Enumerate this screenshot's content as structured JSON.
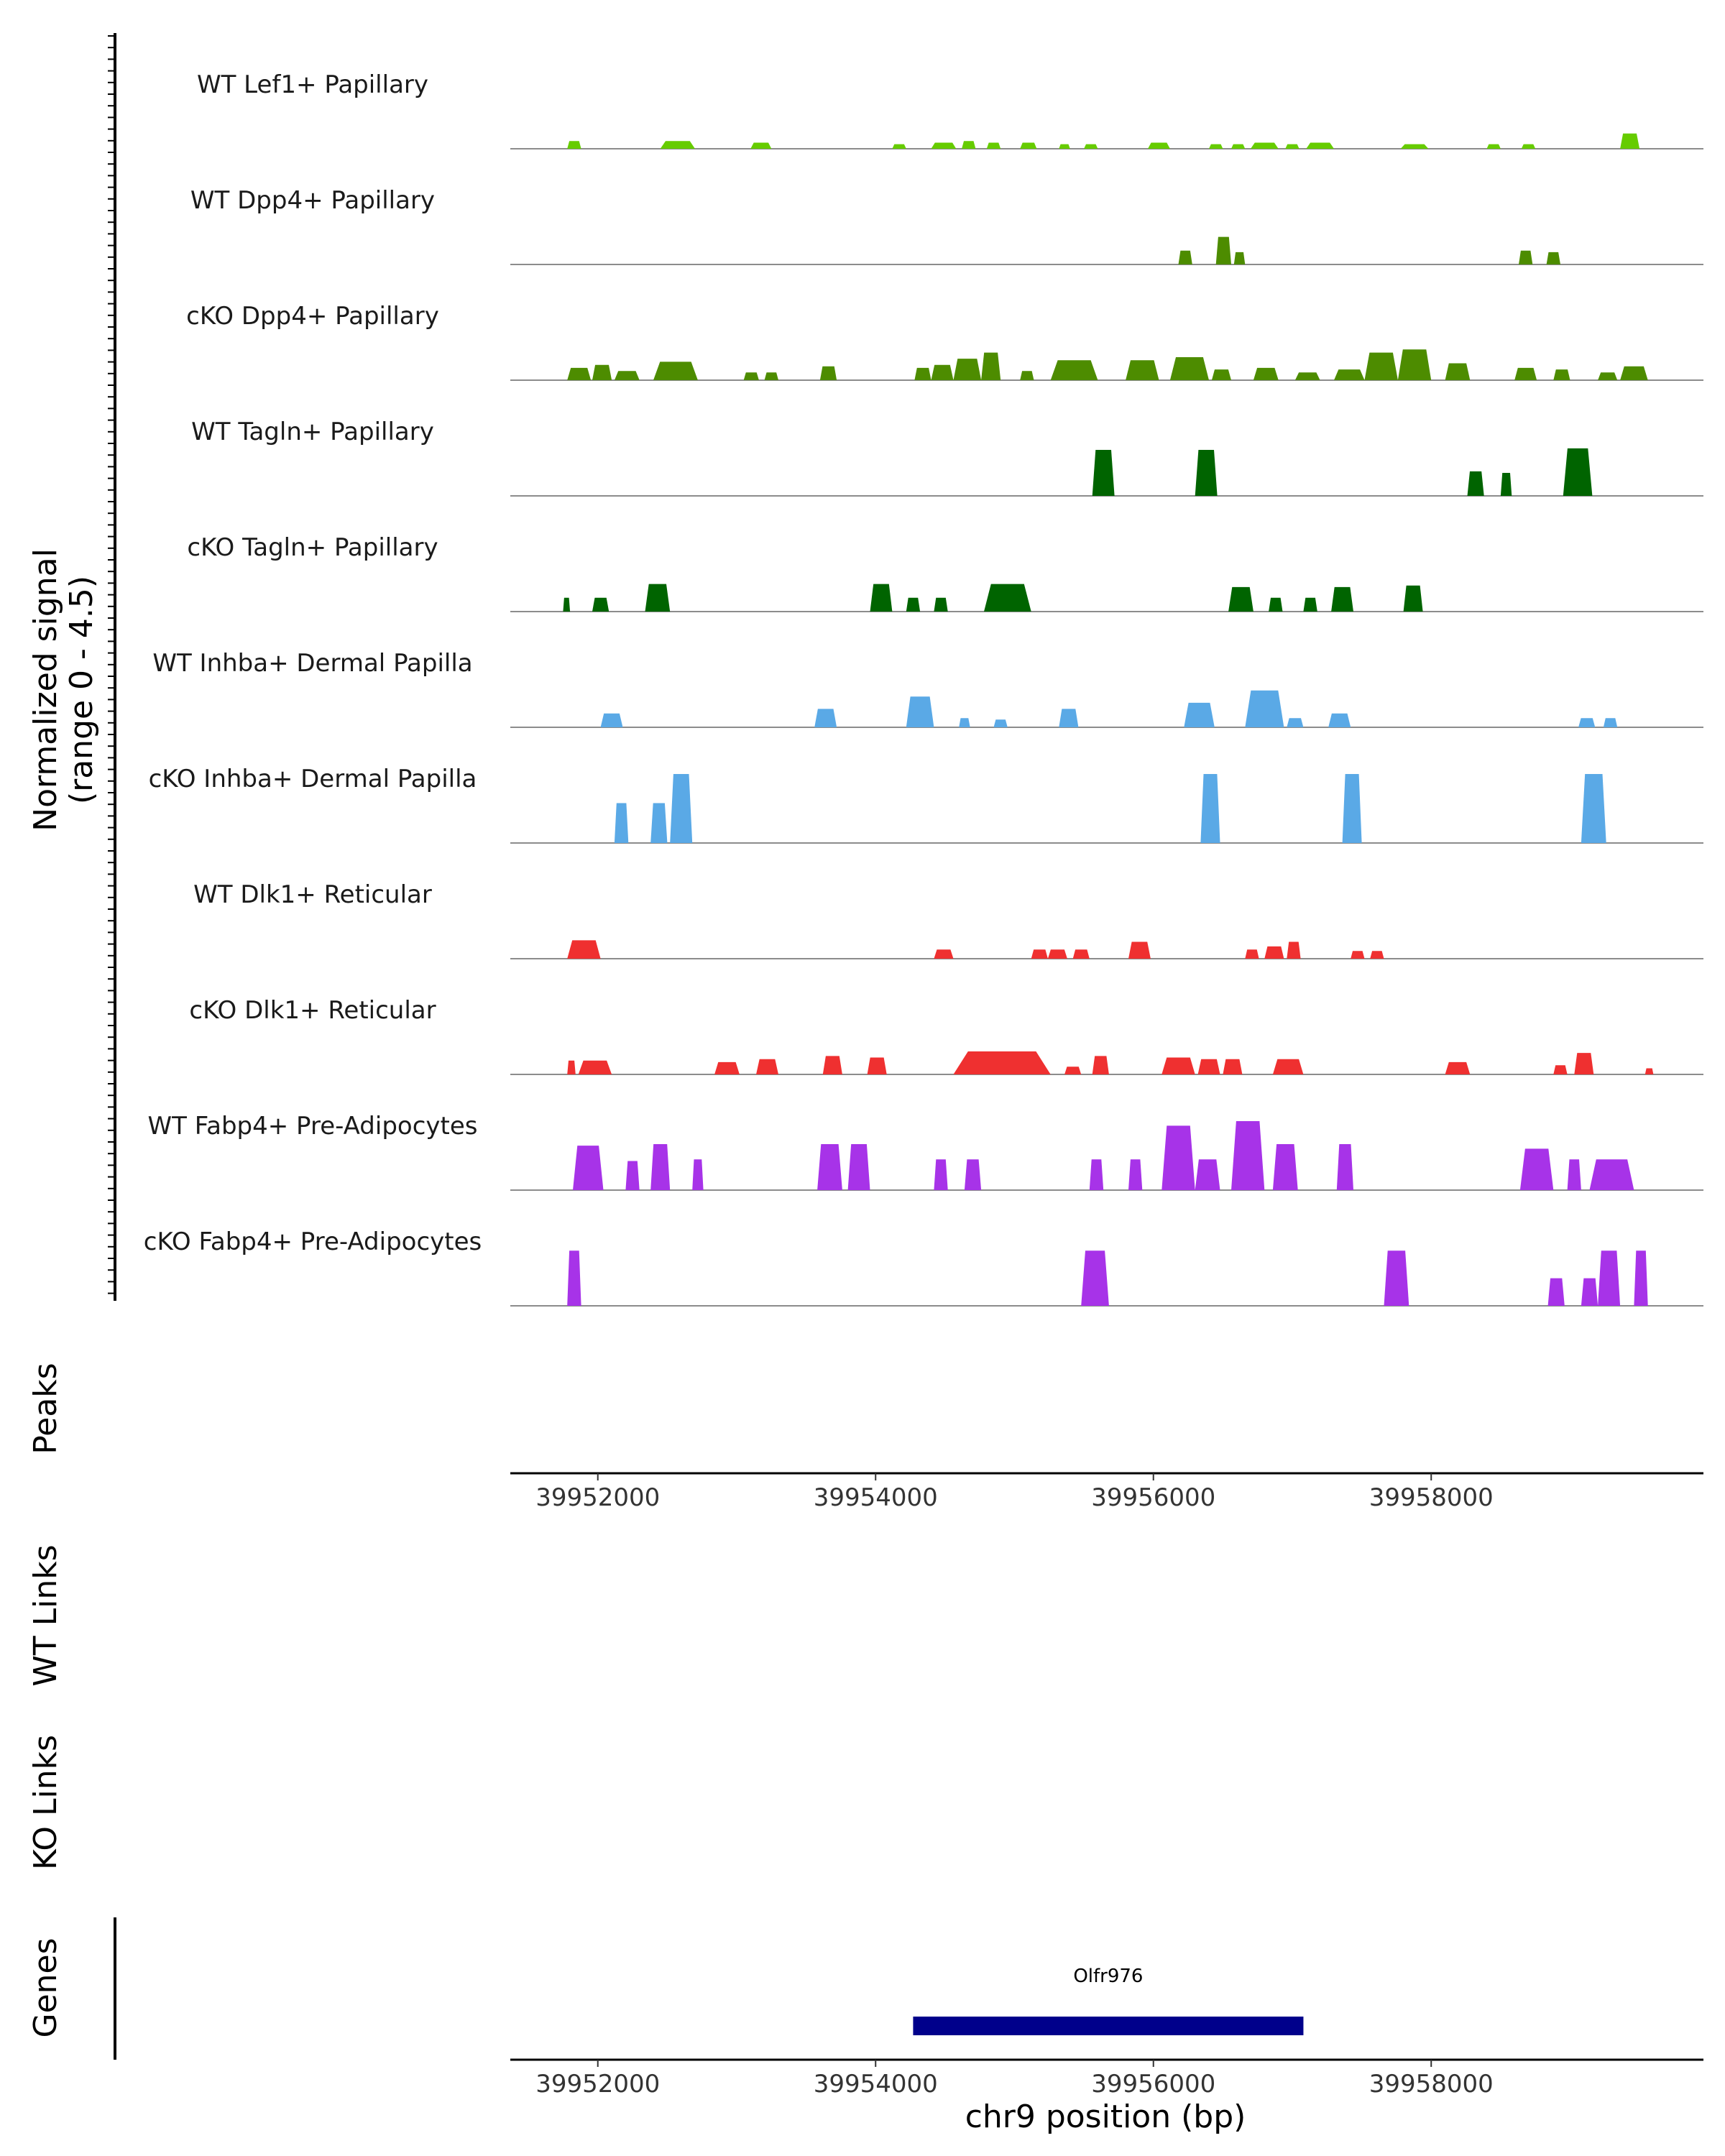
{
  "chart_data": {
    "type": "area",
    "title": "",
    "ylabel_lines": [
      "Normalized signal",
      "(range 0 - 4.5)"
    ],
    "ylim": [
      0,
      4.5
    ],
    "xlim": [
      39951370,
      39959960
    ],
    "xlabel": "chr9 position (bp)",
    "x_ticks": [
      39952000,
      39954000,
      39956000,
      39958000
    ],
    "x_tick_labels": [
      "39952000",
      "39954000",
      "39956000",
      "39958000"
    ],
    "panel_titles": {
      "peaks": "Peaks",
      "wt_links": "WT Links",
      "ko_links": "KO Links",
      "genes": "Genes"
    },
    "genes": [
      {
        "name": "Olfr976",
        "start": 39954270,
        "end": 39957080,
        "color": "#00008b"
      }
    ],
    "series": [
      {
        "name": "WT Lef1+ Papillary",
        "color": "#66cc00",
        "peaks": [
          [
            39951780,
            39951880,
            0.5
          ],
          [
            39952450,
            39952700,
            0.5
          ],
          [
            39953100,
            39953250,
            0.4
          ],
          [
            39954120,
            39954220,
            0.3
          ],
          [
            39954400,
            39954580,
            0.4
          ],
          [
            39954620,
            39954720,
            0.5
          ],
          [
            39954800,
            39954900,
            0.4
          ],
          [
            39955040,
            39955160,
            0.4
          ],
          [
            39955320,
            39955400,
            0.3
          ],
          [
            39955500,
            39955600,
            0.3
          ],
          [
            39955960,
            39956120,
            0.4
          ],
          [
            39956400,
            39956500,
            0.3
          ],
          [
            39956560,
            39956660,
            0.3
          ],
          [
            39956700,
            39956900,
            0.4
          ],
          [
            39956950,
            39957050,
            0.3
          ],
          [
            39957100,
            39957300,
            0.4
          ],
          [
            39957780,
            39957980,
            0.3
          ],
          [
            39958400,
            39958500,
            0.3
          ],
          [
            39958650,
            39958750,
            0.3
          ],
          [
            39959360,
            39959500,
            1.0
          ]
        ]
      },
      {
        "name": "WT Dpp4+ Papillary",
        "color": "#4d8c00",
        "peaks": [
          [
            39956180,
            39956280,
            0.9
          ],
          [
            39956450,
            39956560,
            1.8
          ],
          [
            39956580,
            39956660,
            0.8
          ],
          [
            39958630,
            39958730,
            0.9
          ],
          [
            39958830,
            39958930,
            0.8
          ]
        ]
      },
      {
        "name": "cKO Dpp4+ Papillary",
        "color": "#4d8c00",
        "peaks": [
          [
            39951780,
            39951950,
            0.8
          ],
          [
            39951960,
            39952100,
            1.0
          ],
          [
            39952120,
            39952300,
            0.6
          ],
          [
            39952400,
            39952720,
            1.2
          ],
          [
            39953050,
            39953160,
            0.5
          ],
          [
            39953200,
            39953300,
            0.5
          ],
          [
            39953600,
            39953720,
            0.9
          ],
          [
            39954280,
            39954400,
            0.8
          ],
          [
            39954400,
            39954560,
            1.0
          ],
          [
            39954560,
            39954760,
            1.4
          ],
          [
            39954760,
            39954900,
            1.8
          ],
          [
            39955040,
            39955140,
            0.6
          ],
          [
            39955260,
            39955600,
            1.3
          ],
          [
            39955800,
            39956040,
            1.3
          ],
          [
            39956120,
            39956400,
            1.5
          ],
          [
            39956420,
            39956560,
            0.7
          ],
          [
            39956720,
            39956900,
            0.8
          ],
          [
            39957020,
            39957200,
            0.5
          ],
          [
            39957300,
            39957520,
            0.7
          ],
          [
            39957520,
            39957760,
            1.8
          ],
          [
            39957760,
            39958000,
            2.0
          ],
          [
            39958100,
            39958280,
            1.1
          ],
          [
            39958600,
            39958760,
            0.8
          ],
          [
            39958880,
            39959000,
            0.7
          ],
          [
            39959200,
            39959340,
            0.5
          ],
          [
            39959360,
            39959560,
            0.9
          ]
        ]
      },
      {
        "name": "WT Tagln+ Papillary",
        "color": "#006400",
        "peaks": [
          [
            39955560,
            39955720,
            3.0
          ],
          [
            39956300,
            39956460,
            3.0
          ],
          [
            39958260,
            39958380,
            1.6
          ],
          [
            39958500,
            39958580,
            1.5
          ],
          [
            39958950,
            39959160,
            3.1
          ]
        ]
      },
      {
        "name": "cKO Tagln+ Papillary",
        "color": "#006400",
        "peaks": [
          [
            39951750,
            39951800,
            0.9
          ],
          [
            39951960,
            39952080,
            0.9
          ],
          [
            39952340,
            39952520,
            1.8
          ],
          [
            39953960,
            39954120,
            1.8
          ],
          [
            39954220,
            39954320,
            0.9
          ],
          [
            39954420,
            39954520,
            0.9
          ],
          [
            39954780,
            39955120,
            1.8
          ],
          [
            39956540,
            39956720,
            1.6
          ],
          [
            39956830,
            39956930,
            0.9
          ],
          [
            39957080,
            39957180,
            0.9
          ],
          [
            39957280,
            39957440,
            1.6
          ],
          [
            39957800,
            39957940,
            1.7
          ]
        ]
      },
      {
        "name": "WT Inhba+ Dermal Papilla",
        "color": "#5aa9e6",
        "peaks": [
          [
            39952020,
            39952180,
            0.9
          ],
          [
            39953560,
            39953720,
            1.2
          ],
          [
            39954220,
            39954420,
            2.0
          ],
          [
            39954600,
            39954680,
            0.6
          ],
          [
            39954850,
            39954950,
            0.5
          ],
          [
            39955320,
            39955460,
            1.2
          ],
          [
            39956220,
            39956440,
            1.6
          ],
          [
            39956660,
            39956940,
            2.4
          ],
          [
            39956960,
            39957080,
            0.6
          ],
          [
            39957260,
            39957420,
            0.9
          ],
          [
            39959060,
            39959180,
            0.6
          ],
          [
            39959240,
            39959340,
            0.6
          ]
        ]
      },
      {
        "name": "cKO Inhba+ Dermal Papilla",
        "color": "#5aa9e6",
        "peaks": [
          [
            39952120,
            39952220,
            2.6
          ],
          [
            39952380,
            39952500,
            2.6
          ],
          [
            39952520,
            39952680,
            4.5
          ],
          [
            39956340,
            39956480,
            4.5
          ],
          [
            39957360,
            39957500,
            4.5
          ],
          [
            39959080,
            39959260,
            4.5
          ]
        ]
      },
      {
        "name": "WT Dlk1+ Reticular",
        "color": "#ef3030",
        "peaks": [
          [
            39951780,
            39952020,
            1.2
          ],
          [
            39954420,
            39954560,
            0.6
          ],
          [
            39955120,
            39955240,
            0.6
          ],
          [
            39955240,
            39955380,
            0.6
          ],
          [
            39955420,
            39955540,
            0.6
          ],
          [
            39955820,
            39955980,
            1.1
          ],
          [
            39956660,
            39956760,
            0.6
          ],
          [
            39956800,
            39956940,
            0.8
          ],
          [
            39956960,
            39957060,
            1.1
          ],
          [
            39957420,
            39957520,
            0.5
          ],
          [
            39957560,
            39957660,
            0.5
          ]
        ]
      },
      {
        "name": "cKO Dlk1+ Reticular",
        "color": "#ef3030",
        "peaks": [
          [
            39951780,
            39951840,
            0.9
          ],
          [
            39951860,
            39952100,
            0.9
          ],
          [
            39952840,
            39953020,
            0.8
          ],
          [
            39953140,
            39953300,
            1.0
          ],
          [
            39953620,
            39953760,
            1.2
          ],
          [
            39953940,
            39954080,
            1.1
          ],
          [
            39954560,
            39955260,
            1.5
          ],
          [
            39955360,
            39955480,
            0.5
          ],
          [
            39955560,
            39955680,
            1.2
          ],
          [
            39956060,
            39956300,
            1.1
          ],
          [
            39956320,
            39956480,
            1.0
          ],
          [
            39956500,
            39956640,
            1.0
          ],
          [
            39956860,
            39957080,
            1.0
          ],
          [
            39958100,
            39958280,
            0.8
          ],
          [
            39958880,
            39958980,
            0.6
          ],
          [
            39959030,
            39959170,
            1.4
          ],
          [
            39959540,
            39959600,
            0.4
          ]
        ]
      },
      {
        "name": "WT Fabp4+ Pre-Adipocytes",
        "color": "#a733e8",
        "peaks": [
          [
            39951820,
            39952040,
            2.9
          ],
          [
            39952200,
            39952300,
            1.9
          ],
          [
            39952380,
            39952520,
            3.0
          ],
          [
            39952680,
            39952760,
            2.0
          ],
          [
            39953580,
            39953760,
            3.0
          ],
          [
            39953800,
            39953960,
            3.0
          ],
          [
            39954420,
            39954520,
            2.0
          ],
          [
            39954640,
            39954760,
            2.0
          ],
          [
            39955540,
            39955640,
            2.0
          ],
          [
            39955820,
            39955920,
            2.0
          ],
          [
            39956060,
            39956300,
            4.2
          ],
          [
            39956300,
            39956480,
            2.0
          ],
          [
            39956560,
            39956800,
            4.5
          ],
          [
            39956860,
            39957040,
            3.0
          ],
          [
            39957320,
            39957440,
            3.0
          ],
          [
            39958640,
            39958880,
            2.7
          ],
          [
            39958980,
            39959080,
            2.0
          ],
          [
            39959140,
            39959460,
            2.0
          ]
        ]
      },
      {
        "name": "cKO Fabp4+ Pre-Adipocytes",
        "color": "#a733e8",
        "peaks": [
          [
            39951780,
            39951880,
            3.6
          ],
          [
            39955480,
            39955680,
            3.6
          ],
          [
            39957660,
            39957840,
            3.6
          ],
          [
            39958840,
            39958960,
            1.8
          ],
          [
            39959080,
            39959200,
            1.8
          ],
          [
            39959200,
            39959360,
            3.6
          ],
          [
            39959460,
            39959560,
            3.6
          ]
        ]
      }
    ]
  }
}
